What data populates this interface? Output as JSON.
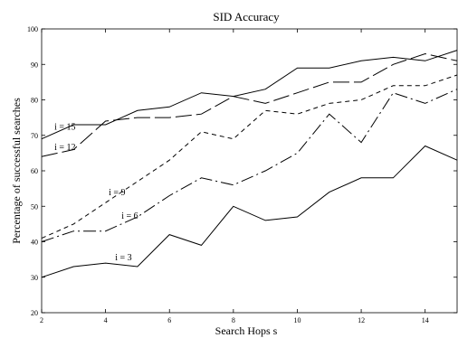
{
  "chart_data": {
    "type": "line",
    "title": "SID Accuracy",
    "xlabel": "Search Hops s",
    "ylabel": "Percentage of successful searches",
    "xlim": [
      2,
      15
    ],
    "ylim": [
      20,
      100
    ],
    "xticks": [
      2,
      4,
      6,
      8,
      10,
      12,
      14
    ],
    "yticks": [
      20,
      30,
      40,
      50,
      60,
      70,
      80,
      90,
      100
    ],
    "grid": false,
    "legend": "inline labels",
    "x": [
      2,
      3,
      4,
      5,
      6,
      7,
      8,
      9,
      10,
      11,
      12,
      13,
      14,
      15
    ],
    "series": [
      {
        "name": "i = 15",
        "dash": "solid",
        "values": [
          69,
          73,
          73,
          77,
          78,
          82,
          81,
          83,
          89,
          89,
          91,
          92,
          91,
          94
        ]
      },
      {
        "name": "i = 12",
        "dash": "longdash",
        "values": [
          64,
          66,
          74,
          75,
          75,
          76,
          81,
          79,
          82,
          85,
          85,
          90,
          93,
          91
        ]
      },
      {
        "name": "i = 9",
        "dash": "dash",
        "values": [
          41,
          45,
          51,
          57,
          63,
          71,
          69,
          77,
          76,
          79,
          80,
          84,
          84,
          87
        ]
      },
      {
        "name": "i = 6",
        "dash": "dashdot",
        "values": [
          40,
          43,
          43,
          47,
          53,
          58,
          56,
          60,
          65,
          76,
          68,
          82,
          79,
          83
        ]
      },
      {
        "name": "i = 3",
        "dash": "solid",
        "values": [
          30,
          33,
          34,
          33,
          42,
          39,
          50,
          46,
          47,
          54,
          58,
          58,
          67,
          63
        ]
      }
    ],
    "colors": {
      "line": "#000000",
      "background": "#ffffff"
    }
  }
}
